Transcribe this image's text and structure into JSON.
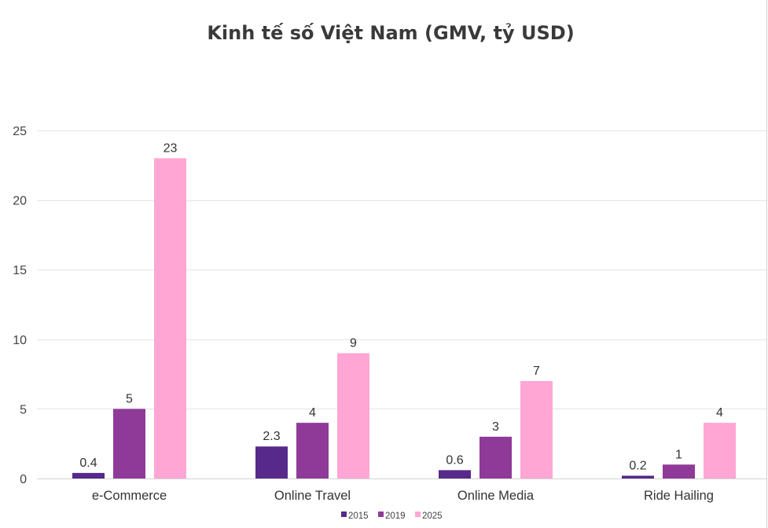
{
  "chart_data": {
    "type": "bar",
    "title": "Kinh tế số Việt Nam (GMV, tỷ USD)",
    "xlabel": "",
    "ylabel": "",
    "categories": [
      "e-Commerce",
      "Online Travel",
      "Online Media",
      "Ride Hailing"
    ],
    "series": [
      {
        "name": "2015",
        "values": [
          0.4,
          2.3,
          0.6,
          0.2
        ],
        "color": "#56298a"
      },
      {
        "name": "2019",
        "values": [
          5,
          4,
          3,
          1
        ],
        "color": "#8f3a98"
      },
      {
        "name": "2025",
        "values": [
          23,
          9,
          7,
          4
        ],
        "color": "#ffa6d4"
      }
    ],
    "ylim": [
      0,
      25
    ],
    "yticks": [
      0,
      5,
      10,
      15,
      20,
      25
    ],
    "grid": true,
    "legend_position": "bottom",
    "data_labels": true
  }
}
